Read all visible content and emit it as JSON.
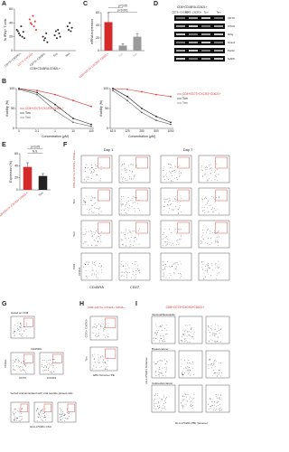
{
  "chart_data": [
    {
      "type": "strip",
      "panel": "A",
      "ylabel": "% IFNγ+ T cells",
      "group_label": "CD8+CD45RA-CD62L+",
      "categories": [
        "CD73+ CXCR3+",
        "CD73- CXCR3+",
        "CD73+ CXCR3-",
        "Tcm",
        "Tem"
      ],
      "colors": [
        "#222222",
        "#e8352e",
        "#222222",
        "#222222",
        "#222222"
      ],
      "values": [
        [
          30,
          28,
          25,
          22,
          35,
          20,
          27,
          18
        ],
        [
          45,
          40,
          38,
          50,
          35,
          42,
          30
        ],
        [
          20,
          15,
          18,
          25,
          12
        ],
        [
          22,
          28,
          18,
          30,
          25,
          20
        ],
        [
          35,
          30,
          40,
          28,
          33
        ]
      ],
      "ylim": [
        0,
        60
      ],
      "yticks": [
        0,
        20,
        40,
        60
      ]
    },
    {
      "type": "bar",
      "panel": "C",
      "ylabel": "mRNA expression",
      "categories": [
        "CD8+CD73+ CXCR3+ CD62L+",
        "Tcm",
        "Tem"
      ],
      "colors": [
        "#d42a2a",
        "#9a9a9a",
        "#9a9a9a"
      ],
      "values": [
        45,
        8,
        22
      ],
      "errors": [
        15,
        3,
        5
      ],
      "annotations": [
        "p<0.001",
        "p=0.05"
      ],
      "ylim": [
        0,
        60
      ],
      "yticks": [
        0,
        20,
        40,
        60
      ]
    },
    {
      "type": "line",
      "panel": "B",
      "ylabel": "Viability (%)",
      "xlabel": "Concentration (µM)",
      "categories": [
        "0",
        "0.1",
        "1",
        "10",
        "100"
      ],
      "series": [
        {
          "name": "CD8+CD73+CXCR3+CD62L+",
          "color": "#e8352e",
          "values": [
            100,
            95,
            85,
            70,
            55
          ]
        },
        {
          "name": "Tcm",
          "color": "#222222",
          "values": [
            100,
            90,
            60,
            25,
            10
          ]
        },
        {
          "name": "Tem",
          "color": "#666666",
          "values": [
            98,
            85,
            45,
            15,
            5
          ]
        }
      ],
      "ylim": [
        0,
        100
      ],
      "yticks": [
        0,
        50,
        100
      ]
    },
    {
      "type": "line",
      "ylabel": "Viability (%)",
      "xlabel": "Concentration (µM)",
      "categories": [
        "62.5",
        "125",
        "250",
        "500",
        "1000"
      ],
      "series": [
        {
          "name": "CD8+CD73+CXCR3+CD62L+",
          "color": "#e8352e",
          "values": [
            100,
            98,
            92,
            85,
            80
          ]
        },
        {
          "name": "Tcm",
          "color": "#222222",
          "values": [
            100,
            80,
            50,
            30,
            15
          ]
        },
        {
          "name": "Tem",
          "color": "#666666",
          "values": [
            95,
            70,
            40,
            20,
            10
          ]
        }
      ],
      "ylim": [
        0,
        100
      ],
      "yticks": [
        0,
        50,
        100
      ]
    },
    {
      "type": "bar",
      "panel": "E",
      "ylabel": "Expression (%)",
      "categories": [
        "CD8+CD73+ CXCR3+ CD62L+",
        "Tcm"
      ],
      "colors": [
        "#d42a2a",
        "#222222"
      ],
      "values": [
        38,
        23
      ],
      "errors": [
        7,
        4
      ],
      "annotations": [
        "N.S.",
        "p<0.05"
      ],
      "ylim": [
        0,
        60
      ],
      "yticks": [
        0,
        20,
        40,
        60
      ]
    }
  ],
  "figure": {
    "D": {
      "letter": "D",
      "header": "CD8+CD45RA-CD62L+",
      "columns": [
        "CD73+ CXCR3+",
        "CD73- CXCR3+",
        "Tcm",
        "Tem"
      ],
      "rows": [
        "CD73",
        "CXCR3",
        "IFNγ",
        "Granzyme B",
        "Perforin",
        "GAPDH"
      ]
    },
    "F": {
      "letter": "F",
      "columns": [
        "Day 1",
        "Day 7"
      ],
      "rows": [
        "CD8+CD73+ CXCR3+ CD62L+",
        "Tcm",
        "Tem",
        "CD8"
      ],
      "x_label": "CD45RA",
      "x_label_2": "CD27",
      "y_label": "CD62L"
    },
    "G": {
      "letter": "G",
      "labels": [
        "Gated on CD8",
        "CD73",
        "CXCR3",
        "CD62L",
        "CD45RA",
        "Sorted and stimulated with viral peptide-pulsed cells",
        "HLA-A*0201 CSU"
      ]
    },
    "H": {
      "letter": "H",
      "title": "CD8+CD73+ CXCR3+ CD62L+",
      "labels": [
        "CD73+ CXCR3+",
        "Tcm",
        "EBV Tetramer PE"
      ]
    },
    "I": {
      "letter": "I",
      "title": "CD8+CD73+CXCR3+CD62L+",
      "rows": [
        "Vaccinia/Newcastle",
        "Breast cancer",
        "Colorectal cancer"
      ],
      "x_label": "HLA-A*0201 PBF Tetramer",
      "y_label": "HLA-A*0201 Tetramer"
    }
  }
}
